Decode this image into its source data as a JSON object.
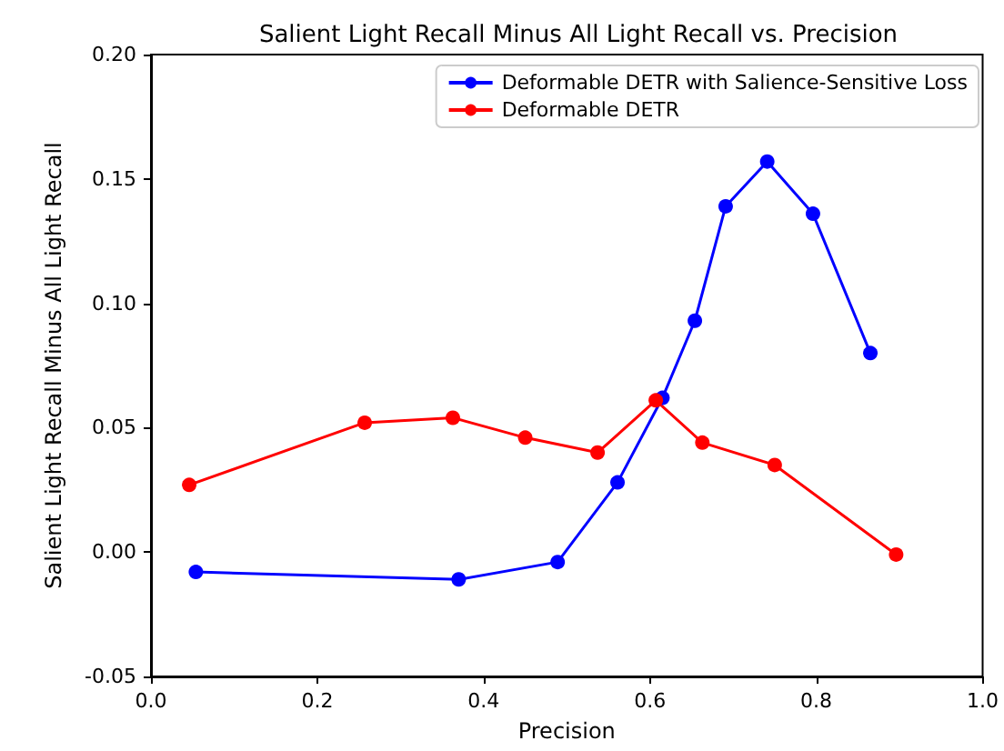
{
  "chart_data": {
    "type": "line",
    "title": "Salient Light Recall Minus All Light Recall vs. Precision",
    "xlabel": "Precision",
    "ylabel": "Salient Light Recall Minus All Light Recall",
    "series": [
      {
        "name": "Deformable DETR with Salience-Sensitive Loss",
        "color": "#0000ff",
        "x": [
          0.054,
          0.37,
          0.489,
          0.561,
          0.615,
          0.654,
          0.691,
          0.741,
          0.796,
          0.865
        ],
        "values": [
          -0.008,
          -0.011,
          -0.004,
          0.028,
          0.062,
          0.093,
          0.139,
          0.157,
          0.136,
          0.08
        ]
      },
      {
        "name": "Deformable DETR",
        "color": "#ff0000",
        "x": [
          0.046,
          0.257,
          0.363,
          0.45,
          0.537,
          0.607,
          0.663,
          0.75,
          0.896
        ],
        "values": [
          0.027,
          0.052,
          0.054,
          0.046,
          0.04,
          0.061,
          0.044,
          0.035,
          -0.001
        ]
      }
    ],
    "xlim": [
      0,
      1.0
    ],
    "xticks": [
      {
        "value": 0,
        "label": "0.0"
      },
      0.2,
      0.4,
      0.6,
      0.8,
      {
        "value": 1,
        "label": "1.0"
      }
    ],
    "ylim": [
      -0.05,
      0.2
    ],
    "yticks": [
      -0.05,
      {
        "value": 0,
        "label": "0.00"
      },
      0.05,
      {
        "value": 0.1,
        "label": "0.10"
      },
      0.15,
      {
        "value": 0.2,
        "label": "0.20"
      }
    ],
    "legend": "top right",
    "marker": "circle",
    "line_style": "solid"
  }
}
